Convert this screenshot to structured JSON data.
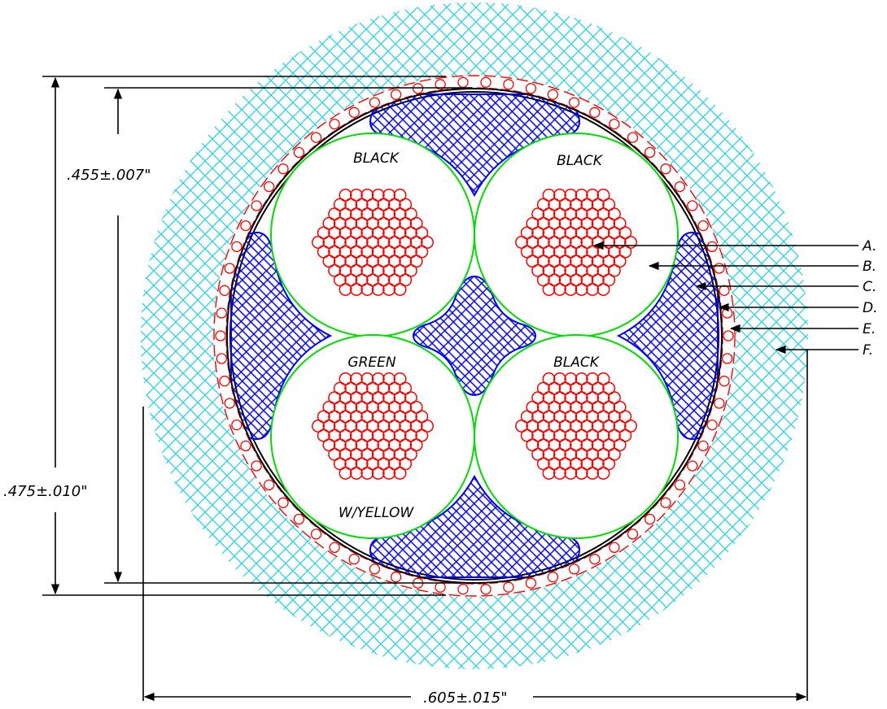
{
  "conductors": [
    {
      "id": "top-left",
      "color_label": "BLACK"
    },
    {
      "id": "top-right",
      "color_label": "BLACK"
    },
    {
      "id": "bottom-left",
      "color_label": "GREEN",
      "color_label_line2": "W/YELLOW"
    },
    {
      "id": "bottom-right",
      "color_label": "BLACK"
    }
  ],
  "callouts": [
    "A.",
    "B.",
    "C.",
    "D.",
    "E.",
    "F."
  ],
  "dimensions": {
    "inner_diameter": ".455±.007\"",
    "outer_height": ".475±.010\"",
    "overall_diameter": ".605±.015\""
  },
  "colors": {
    "outer_jacket": "#22d3e6",
    "strands": "#ff0000",
    "fillers": "#0000ff",
    "insulation": "#00dd00",
    "shield": "#ff0000",
    "lines": "#000000"
  }
}
